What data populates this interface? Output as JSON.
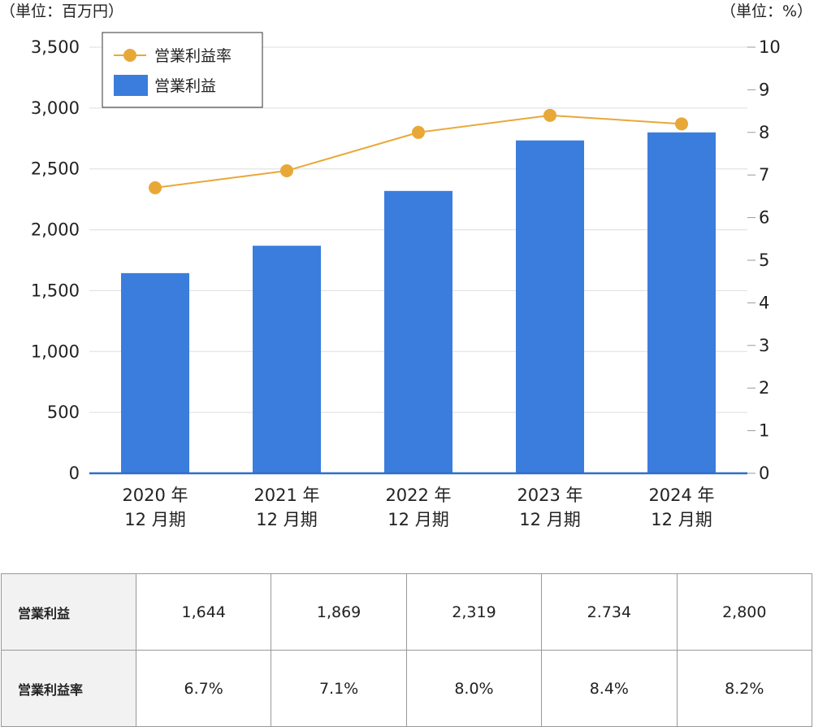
{
  "chart_data": {
    "type": "bar",
    "left_unit": "（単位：百万円）",
    "right_unit": "（単位：%）",
    "categories": [
      [
        "2020 年",
        "12 月期"
      ],
      [
        "2021 年",
        "12 月期"
      ],
      [
        "2022 年",
        "12 月期"
      ],
      [
        "2023 年",
        "12 月期"
      ],
      [
        "2024 年",
        "12 月期"
      ]
    ],
    "left_axis": {
      "min": 0,
      "max": 3500,
      "step": 500,
      "tick_labels": [
        "0",
        "500",
        "1,000",
        "1,500",
        "2,000",
        "2,500",
        "3,000",
        "3,500"
      ]
    },
    "right_axis": {
      "min": 0,
      "max": 10,
      "step": 1,
      "tick_labels": [
        "0",
        "1",
        "2",
        "3",
        "4",
        "5",
        "6",
        "7",
        "8",
        "9",
        "10"
      ]
    },
    "series": [
      {
        "name": "営業利益",
        "type": "bar",
        "axis": "left",
        "color": "#3b7ddd",
        "values": [
          1644,
          1869,
          2319,
          2734,
          2800
        ]
      },
      {
        "name": "営業利益率",
        "type": "line",
        "axis": "right",
        "color": "#e8a838",
        "values": [
          6.7,
          7.1,
          8.0,
          8.4,
          8.2
        ]
      }
    ],
    "legend": {
      "position": "top-left"
    },
    "grid": true,
    "colors": {
      "grid": "#dddddd",
      "baseline": "#2f6fc8"
    }
  },
  "table": {
    "rows": [
      {
        "label": "営業利益",
        "cells": [
          "1,644",
          "1,869",
          "2,319",
          "2.734",
          "2,800"
        ]
      },
      {
        "label": "営業利益率",
        "cells": [
          "6.7%",
          "7.1%",
          "8.0%",
          "8.4%",
          "8.2%"
        ]
      }
    ]
  }
}
